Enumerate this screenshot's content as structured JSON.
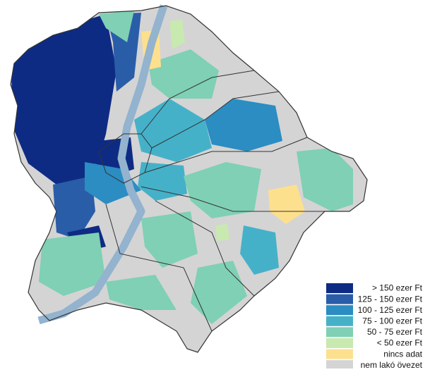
{
  "legend": {
    "items": [
      {
        "label": "> 150 ezer Ft",
        "color": "#0e2b84"
      },
      {
        "label": "125 - 150 ezer Ft",
        "color": "#2a5da8"
      },
      {
        "label": "100 - 125 ezer Ft",
        "color": "#2b8dc2"
      },
      {
        "label": "75 - 100 ezer Ft",
        "color": "#45b1c9"
      },
      {
        "label": "50 - 75 ezer Ft",
        "color": "#7fd0b4"
      },
      {
        "label": "< 50 ezer Ft",
        "color": "#c8e9b0"
      },
      {
        "label": "nincs adat",
        "color": "#fde08e"
      },
      {
        "label": "nem lakó övezet",
        "color": "#d4d4d4"
      }
    ]
  }
}
